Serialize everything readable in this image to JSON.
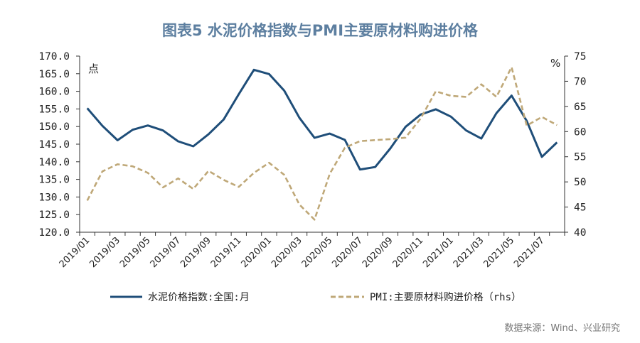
{
  "chart_data": {
    "type": "line",
    "title": "图表5  水泥价格指数与PMI主要原材料购进价格",
    "left_unit": "点",
    "right_unit": "%",
    "x": [
      "2019/01",
      "2019/02",
      "2019/03",
      "2019/04",
      "2019/05",
      "2019/06",
      "2019/07",
      "2019/08",
      "2019/09",
      "2019/10",
      "2019/11",
      "2019/12",
      "2020/01",
      "2020/02",
      "2020/03",
      "2020/04",
      "2020/05",
      "2020/06",
      "2020/07",
      "2020/08",
      "2020/09",
      "2020/10",
      "2020/11",
      "2020/12",
      "2021/01",
      "2021/02",
      "2021/03",
      "2021/04",
      "2021/05",
      "2021/06",
      "2021/07",
      "2021/08"
    ],
    "xtick_labels": [
      "2019/01",
      "2019/03",
      "2019/05",
      "2019/07",
      "2019/09",
      "2019/11",
      "2020/01",
      "2020/03",
      "2020/05",
      "2020/07",
      "2020/09",
      "2020/11",
      "2021/01",
      "2021/03",
      "2021/05",
      "2021/07"
    ],
    "ylim_left": [
      120,
      170
    ],
    "yticks_left": [
      "120.0",
      "125.0",
      "130.0",
      "135.0",
      "140.0",
      "145.0",
      "150.0",
      "155.0",
      "160.0",
      "165.0",
      "170.0"
    ],
    "ylim_right": [
      40,
      75
    ],
    "yticks_right": [
      "40",
      "45",
      "50",
      "55",
      "60",
      "65",
      "70",
      "75"
    ],
    "series": [
      {
        "name": "水泥价格指数:全国:月",
        "axis": "left",
        "color": "#1f4e79",
        "style": "solid",
        "values": [
          155.2,
          150.2,
          146.1,
          149.1,
          150.3,
          148.9,
          145.8,
          144.4,
          147.8,
          152.0,
          159.2,
          166.1,
          164.9,
          160.2,
          152.5,
          146.8,
          148.0,
          146.2,
          137.8,
          138.5,
          143.8,
          149.9,
          153.4,
          154.9,
          152.8,
          148.9,
          146.6,
          153.8,
          158.8,
          151.6,
          141.4,
          145.5
        ]
      },
      {
        "name": "PMI:主要原材料购进价格（rhs）",
        "axis": "right",
        "color": "#bfa878",
        "style": "dashed",
        "values": [
          46.3,
          52.1,
          53.5,
          53.1,
          51.8,
          48.9,
          50.7,
          48.6,
          52.2,
          50.4,
          49.0,
          51.8,
          53.8,
          51.4,
          45.5,
          42.5,
          51.6,
          56.8,
          58.1,
          58.3,
          58.5,
          58.8,
          62.6,
          68.0,
          67.1,
          66.9,
          69.4,
          66.9,
          72.8,
          61.2,
          62.9,
          61.3
        ]
      }
    ],
    "source": "数据来源：Wind、兴业研究"
  }
}
